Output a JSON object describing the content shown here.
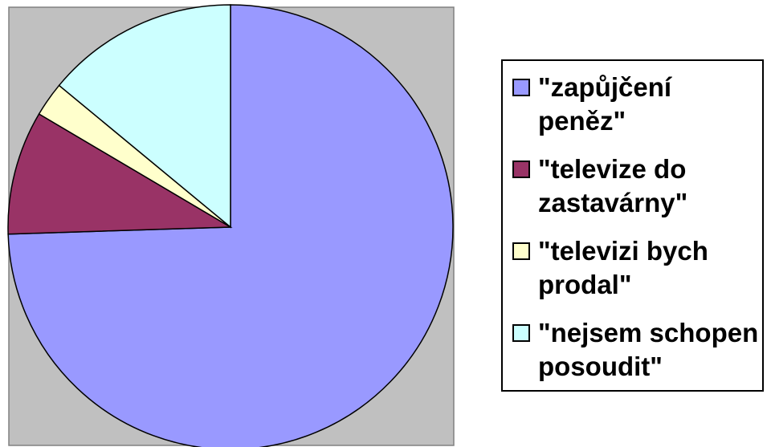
{
  "chart_data": {
    "type": "pie",
    "title": "",
    "legend_position": "right",
    "plot_background": "#c0c0c0",
    "categories": [
      "\"zapůjčení peněz\"",
      "\"televize do zastavárny\"",
      "\"televizi bych prodal\"",
      "\"nejsem schopen posoudit\""
    ],
    "values": [
      74.5,
      9.0,
      2.5,
      14.0
    ],
    "colors": [
      "#9999ff",
      "#993366",
      "#ffffcc",
      "#ccffff"
    ]
  },
  "legend": {
    "items": [
      {
        "label": "\"zapůjčení\npeněz\"",
        "color": "#9999ff"
      },
      {
        "label": "\"televize do\nzastavárny\"",
        "color": "#993366"
      },
      {
        "label": "\"televizi bych\nprodal\"",
        "color": "#ffffcc"
      },
      {
        "label": "\"nejsem schopen\nposoudit\"",
        "color": "#ccffff"
      }
    ]
  }
}
